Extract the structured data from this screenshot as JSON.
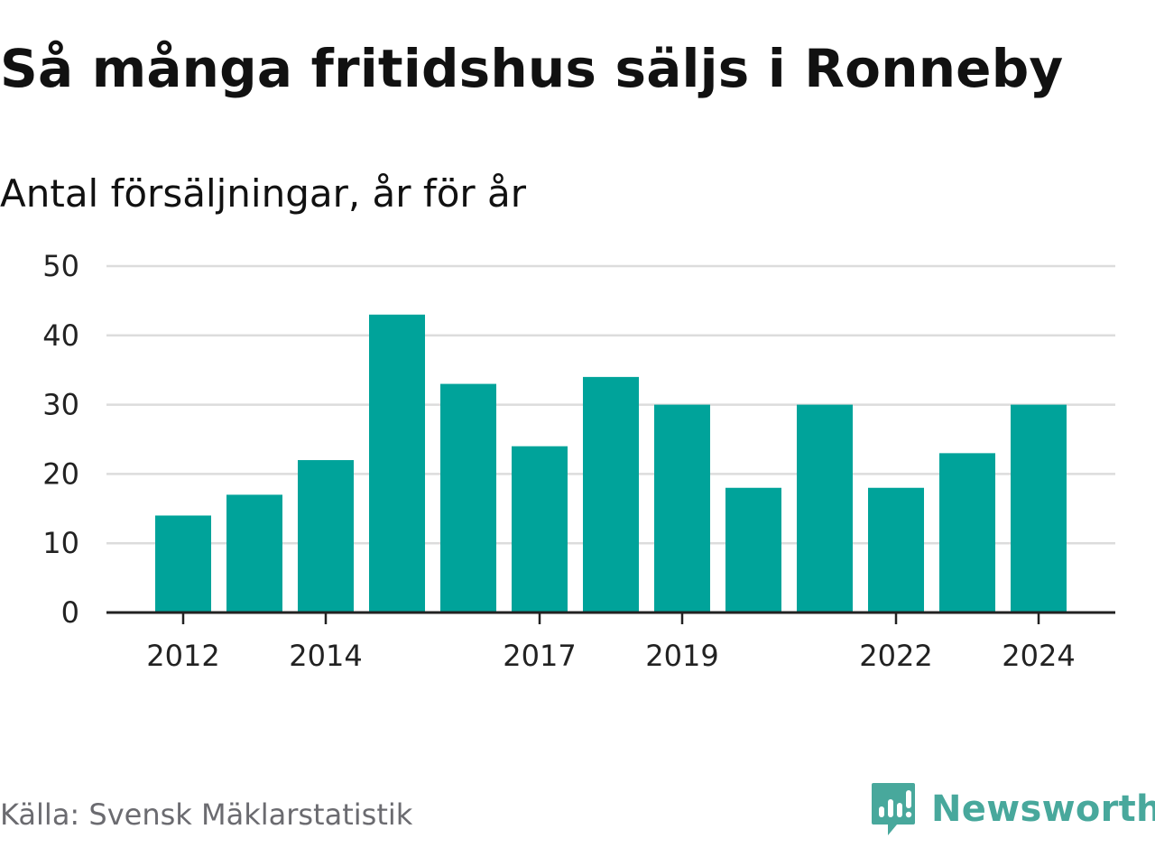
{
  "header": {
    "title": "Så många fritidshus säljs i Ronneby",
    "subtitle": "Antal försäljningar, år för år"
  },
  "footer": {
    "source": "Källa: Svensk Mäklarstatistik",
    "brand": "Newsworthy",
    "brand_icon": "newsworthy-logo-icon"
  },
  "colors": {
    "bar": "#00a39a",
    "grid": "#dcdcdc",
    "axis": "#222222",
    "brand": "#48a89c",
    "source_text": "#6b6b70"
  },
  "chart_data": {
    "type": "bar",
    "categories": [
      "2012",
      "2013",
      "2014",
      "2015",
      "2016",
      "2017",
      "2018",
      "2019",
      "2020",
      "2021",
      "2022",
      "2023",
      "2024"
    ],
    "values": [
      14,
      17,
      22,
      43,
      33,
      24,
      34,
      30,
      18,
      30,
      18,
      23,
      30
    ],
    "x_tick_labels": [
      "2012",
      "2014",
      "2017",
      "2019",
      "2022",
      "2024"
    ],
    "y_ticks": [
      0,
      10,
      20,
      30,
      40,
      50
    ],
    "ylim": [
      0,
      50
    ],
    "xlabel": "",
    "ylabel": "",
    "grid": true
  }
}
